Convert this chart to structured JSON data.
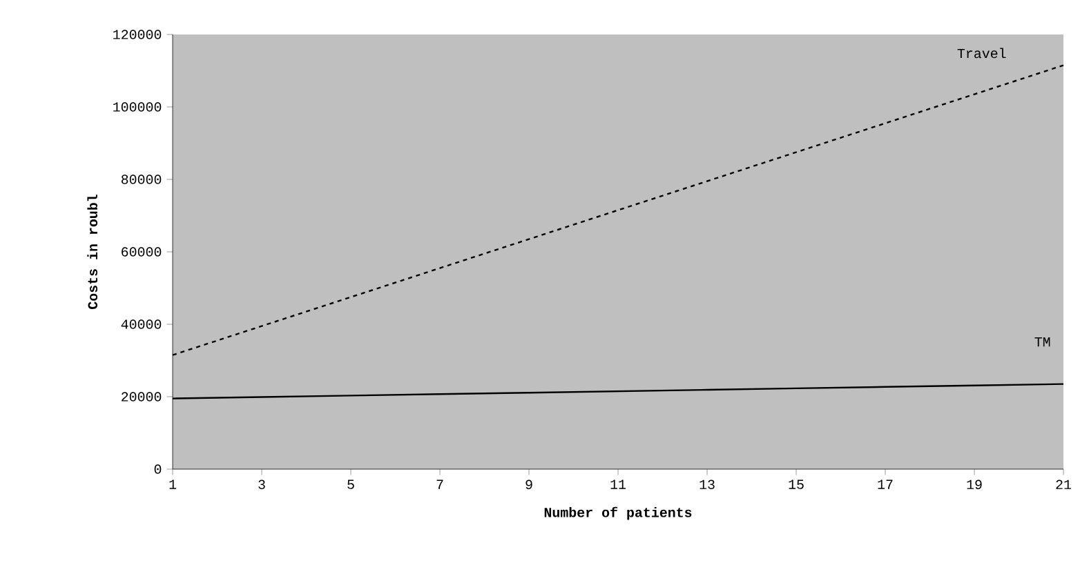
{
  "chart_data": {
    "type": "line",
    "xlabel": "Number of patients",
    "ylabel": "Costs in roubl",
    "x": [
      1,
      3,
      5,
      7,
      9,
      11,
      13,
      15,
      17,
      19,
      21
    ],
    "series": [
      {
        "name": "Travel",
        "color": "#000000",
        "line_style": "dashed",
        "values": [
          31500,
          39500,
          47500,
          55500,
          63500,
          71500,
          79500,
          87500,
          95500,
          103500,
          111500
        ]
      },
      {
        "name": "TM",
        "color": "#000000",
        "line_style": "solid",
        "values": [
          19500,
          19900,
          20300,
          20700,
          21100,
          21500,
          21900,
          22300,
          22700,
          23100,
          23500
        ]
      }
    ],
    "xlim": [
      1,
      21
    ],
    "xticks": [
      1,
      3,
      5,
      7,
      9,
      11,
      13,
      15,
      17,
      19,
      21
    ],
    "ylim": [
      0,
      120000
    ],
    "yticks": [
      0,
      20000,
      40000,
      60000,
      80000,
      100000,
      120000
    ]
  }
}
